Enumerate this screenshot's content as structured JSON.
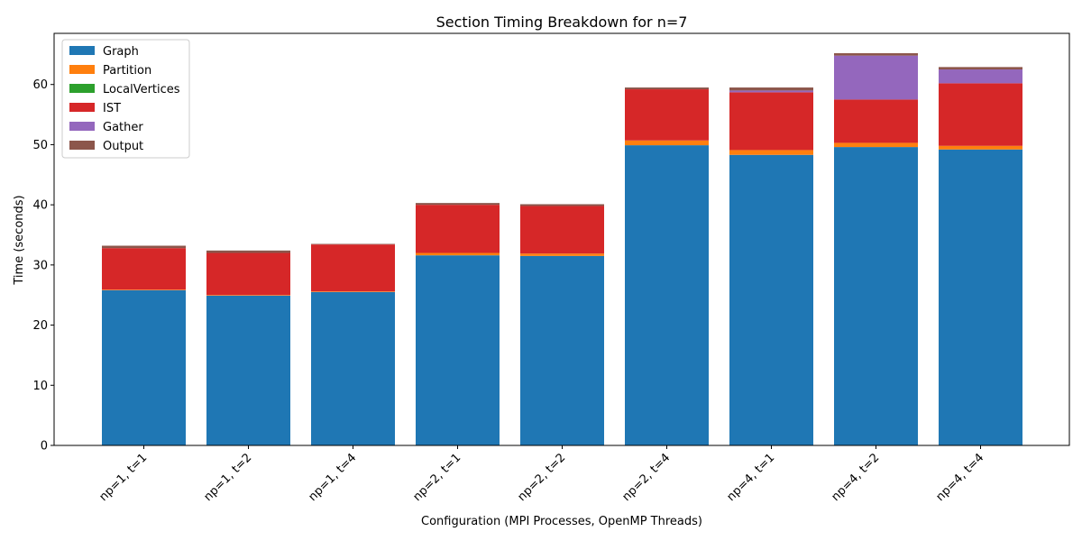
{
  "chart_data": {
    "type": "bar",
    "stacked": true,
    "title": "Section Timing Breakdown for n=7",
    "xlabel": "Configuration (MPI Processes, OpenMP Threads)",
    "ylabel": "Time (seconds)",
    "ylim": [
      0,
      68.5
    ],
    "yticks": [
      0,
      10,
      20,
      30,
      40,
      50,
      60
    ],
    "grid": false,
    "legend_position": "top-left",
    "categories": [
      "np=1, t=1",
      "np=1, t=2",
      "np=1, t=4",
      "np=2, t=1",
      "np=2, t=2",
      "np=2, t=4",
      "np=4, t=1",
      "np=4, t=2",
      "np=4, t=4"
    ],
    "series": [
      {
        "name": "Graph",
        "color": "#1f77b4",
        "values": [
          25.8,
          24.9,
          25.5,
          31.6,
          31.5,
          49.9,
          48.3,
          49.6,
          49.2
        ]
      },
      {
        "name": "Partition",
        "color": "#ff7f0e",
        "values": [
          0.1,
          0.1,
          0.1,
          0.4,
          0.4,
          0.8,
          0.8,
          0.7,
          0.6
        ]
      },
      {
        "name": "LocalVertices",
        "color": "#2ca02c",
        "values": [
          0.0,
          0.0,
          0.0,
          0.0,
          0.0,
          0.0,
          0.0,
          0.0,
          0.0
        ]
      },
      {
        "name": "IST",
        "color": "#d62728",
        "values": [
          6.9,
          7.0,
          7.8,
          8.0,
          7.9,
          8.5,
          9.6,
          7.2,
          10.4
        ]
      },
      {
        "name": "Gather",
        "color": "#9467bd",
        "values": [
          0.0,
          0.0,
          0.0,
          0.0,
          0.0,
          0.0,
          0.3,
          7.3,
          2.3
        ]
      },
      {
        "name": "Output",
        "color": "#8c564b",
        "values": [
          0.4,
          0.4,
          0.1,
          0.3,
          0.3,
          0.3,
          0.5,
          0.4,
          0.4
        ]
      }
    ]
  }
}
